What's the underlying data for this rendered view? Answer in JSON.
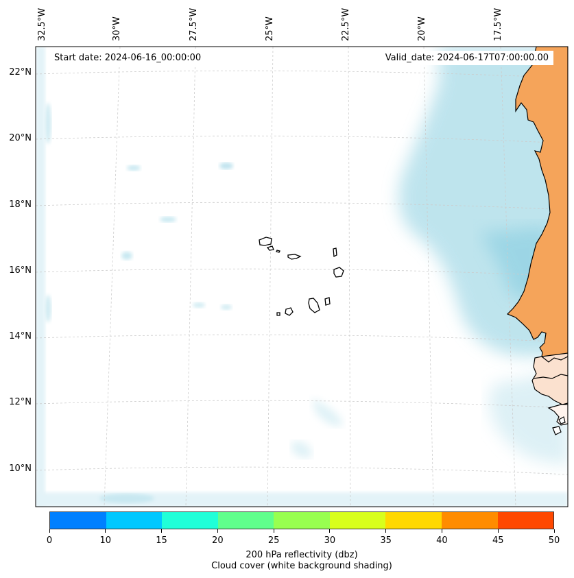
{
  "map": {
    "start_date": "Start date: 2024-06-16_00:00:00",
    "valid_date": "Valid_date: 2024-06-17T07:00:00.00",
    "lon_labels": [
      "32.5°W",
      "30°W",
      "27.5°W",
      "25°W",
      "22.5°W",
      "20°W",
      "17.5°W"
    ],
    "lat_labels": [
      "22°N",
      "20°N",
      "18°N",
      "16°N",
      "14°N",
      "12°N",
      "10°N"
    ],
    "extent": {
      "lon_min": -33.0,
      "lon_max": -16.0,
      "lat_min": 8.9,
      "lat_max": 22.8
    },
    "features": [
      "cape-verde-islands",
      "west-africa-coastline",
      "cloud-cover-shading",
      "reflectivity-land-shading"
    ]
  },
  "colorbar": {
    "label_line1": "200 hPa reflectivity (dbz)",
    "label_line2": "Cloud cover (white background shading)",
    "ticks": [
      "0",
      "10",
      "15",
      "20",
      "25",
      "30",
      "35",
      "40",
      "45",
      "50"
    ],
    "colors": [
      "#0080ff",
      "#00c8ff",
      "#20ffd8",
      "#60ff8c",
      "#98ff50",
      "#d8ff1c",
      "#ffd800",
      "#ff8c00",
      "#ff4800"
    ]
  },
  "colors": {
    "land": "#f5a45a",
    "cloud": "#a9dbe8",
    "coast": "#000000",
    "grid": "#cccccc"
  }
}
